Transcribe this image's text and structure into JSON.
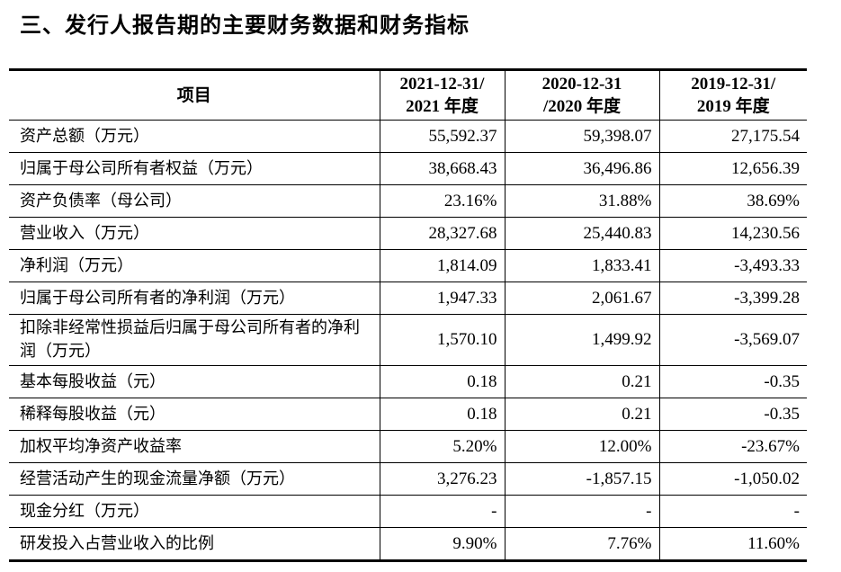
{
  "title": "三、发行人报告期的主要财务数据和财务指标",
  "table": {
    "headers": [
      "项目",
      "2021-12-31/\n2021 年度",
      "2020-12-31\n/2020 年度",
      "2019-12-31/\n2019 年度"
    ],
    "rows": [
      {
        "label": "资产总额（万元）",
        "values": [
          "55,592.37",
          "59,398.07",
          "27,175.54"
        ]
      },
      {
        "label": "归属于母公司所有者权益（万元）",
        "values": [
          "38,668.43",
          "36,496.86",
          "12,656.39"
        ]
      },
      {
        "label": "资产负债率（母公司）",
        "values": [
          "23.16%",
          "31.88%",
          "38.69%"
        ]
      },
      {
        "label": "营业收入（万元）",
        "values": [
          "28,327.68",
          "25,440.83",
          "14,230.56"
        ]
      },
      {
        "label": "净利润（万元）",
        "values": [
          "1,814.09",
          "1,833.41",
          "-3,493.33"
        ]
      },
      {
        "label": "归属于母公司所有者的净利润（万元）",
        "values": [
          "1,947.33",
          "2,061.67",
          "-3,399.28"
        ]
      },
      {
        "label": "扣除非经常性损益后归属于母公司所有者的净利润（万元）",
        "values": [
          "1,570.10",
          "1,499.92",
          "-3,569.07"
        ]
      },
      {
        "label": "基本每股收益（元）",
        "values": [
          "0.18",
          "0.21",
          "-0.35"
        ]
      },
      {
        "label": "稀释每股收益（元）",
        "values": [
          "0.18",
          "0.21",
          "-0.35"
        ]
      },
      {
        "label": "加权平均净资产收益率",
        "values": [
          "5.20%",
          "12.00%",
          "-23.67%"
        ]
      },
      {
        "label": "经营活动产生的现金流量净额（万元）",
        "values": [
          "3,276.23",
          "-1,857.15",
          "-1,050.02"
        ]
      },
      {
        "label": "现金分红（万元）",
        "values": [
          "-",
          "-",
          "-"
        ]
      },
      {
        "label": "研发投入占营业收入的比例",
        "values": [
          "9.90%",
          "7.76%",
          "11.60%"
        ]
      }
    ]
  }
}
